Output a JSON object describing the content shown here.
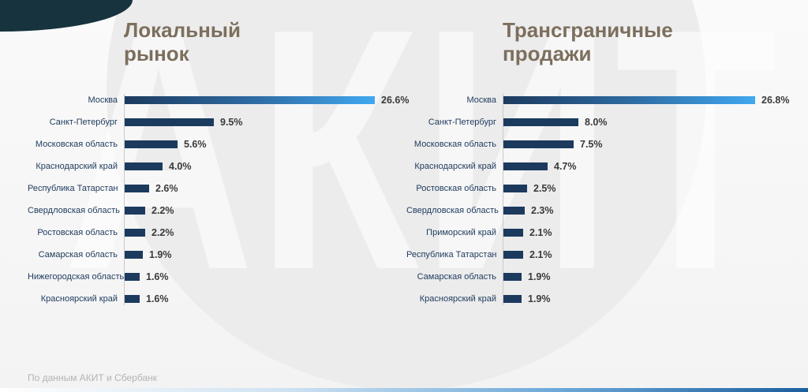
{
  "page": {
    "watermark_text": "АКИТ",
    "source_note": "По данным АКИТ и Сбербанк"
  },
  "colors": {
    "background": "#f5f5f6",
    "bar": "#1c3a5e",
    "bar_gradient_end": "#41a8f0",
    "title": "#7c6f5c",
    "label": "#1d3a5c",
    "value": "#3a3a3a",
    "corner_shape": "#16333e",
    "bottom_bar_blue": "#1b5e9e"
  },
  "chart_data": [
    {
      "type": "bar",
      "orientation": "horizontal",
      "title": "Локальный рынок",
      "categories": [
        "Москва",
        "Санкт-Петербург",
        "Московская область",
        "Краснодарский край",
        "Республика Татарстан",
        "Свердловская область",
        "Ростовская область",
        "Самарская область",
        "Нижегородская область",
        "Красноярский край"
      ],
      "values": [
        26.6,
        9.5,
        5.6,
        4.0,
        2.6,
        2.2,
        2.2,
        1.9,
        1.6,
        1.6
      ],
      "value_suffix": "%",
      "xlim": [
        0,
        27
      ],
      "grid": false,
      "legend": false
    },
    {
      "type": "bar",
      "orientation": "horizontal",
      "title": "Трансграничные продажи",
      "categories": [
        "Москва",
        "Санкт-Петербург",
        "Московская область",
        "Краснодарский край",
        "Ростовская область",
        "Свердловская область",
        "Приморский край",
        "Республика Татарстан",
        "Самарская область",
        "Красноярский край"
      ],
      "values": [
        26.8,
        8.0,
        7.5,
        4.7,
        2.5,
        2.3,
        2.1,
        2.1,
        1.9,
        1.9
      ],
      "value_suffix": "%",
      "xlim": [
        0,
        27
      ],
      "grid": false,
      "legend": false
    }
  ]
}
